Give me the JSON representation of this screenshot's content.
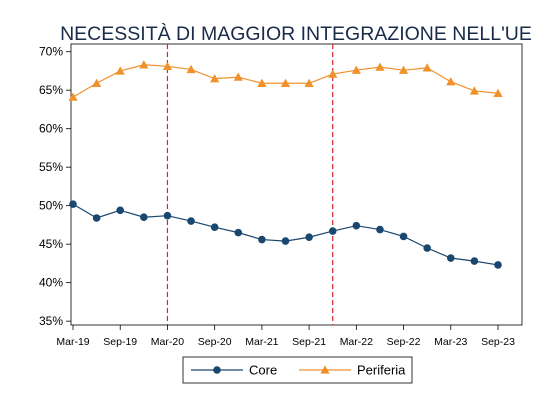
{
  "chart_data": {
    "type": "line",
    "title": "NECESSITÀ DI MAGGIOR INTEGRAZIONE NELL'UE",
    "xlabel": "",
    "ylabel": "",
    "x": [
      "Mar-19",
      "Jun-19",
      "Sep-19",
      "Dec-19",
      "Mar-20",
      "Jun-20",
      "Sep-20",
      "Dec-20",
      "Mar-21",
      "Jun-21",
      "Sep-21",
      "Dec-21",
      "Mar-22",
      "Jun-22",
      "Sep-22",
      "Dec-22",
      "Mar-23",
      "Jun-23",
      "Sep-23"
    ],
    "x_tick_labels": [
      "Mar-19",
      "Sep-19",
      "Mar-20",
      "Sep-20",
      "Mar-21",
      "Sep-21",
      "Mar-22",
      "Sep-22",
      "Mar-23",
      "Sep-23"
    ],
    "y_tick_labels": [
      "35%",
      "40%",
      "45%",
      "50%",
      "55%",
      "60%",
      "65%",
      "70%"
    ],
    "y_ticks": [
      35,
      40,
      45,
      50,
      55,
      60,
      65,
      70
    ],
    "ylim": [
      34.5,
      71
    ],
    "grid": false,
    "legend": "bottom",
    "vertical_reference_lines": [
      "Mar-20",
      "Dec-21"
    ],
    "series": [
      {
        "name": "Core",
        "marker": "circle",
        "color": "#1a476f",
        "values": [
          50.2,
          48.4,
          49.4,
          48.5,
          48.7,
          48.0,
          47.2,
          46.5,
          45.6,
          45.4,
          45.9,
          46.7,
          47.4,
          46.9,
          46.0,
          44.5,
          43.2,
          42.8,
          42.3
        ]
      },
      {
        "name": "Periferia",
        "marker": "triangle",
        "color": "#f0912c",
        "values": [
          64.1,
          65.9,
          67.5,
          68.3,
          68.1,
          67.7,
          66.5,
          66.7,
          65.9,
          65.9,
          65.9,
          67.1,
          67.6,
          68.0,
          67.6,
          67.9,
          66.1,
          64.9,
          64.6
        ]
      }
    ],
    "colors": {
      "reference_line": "#d62728",
      "axis": "#000000",
      "title": "#1a2b4a"
    }
  }
}
